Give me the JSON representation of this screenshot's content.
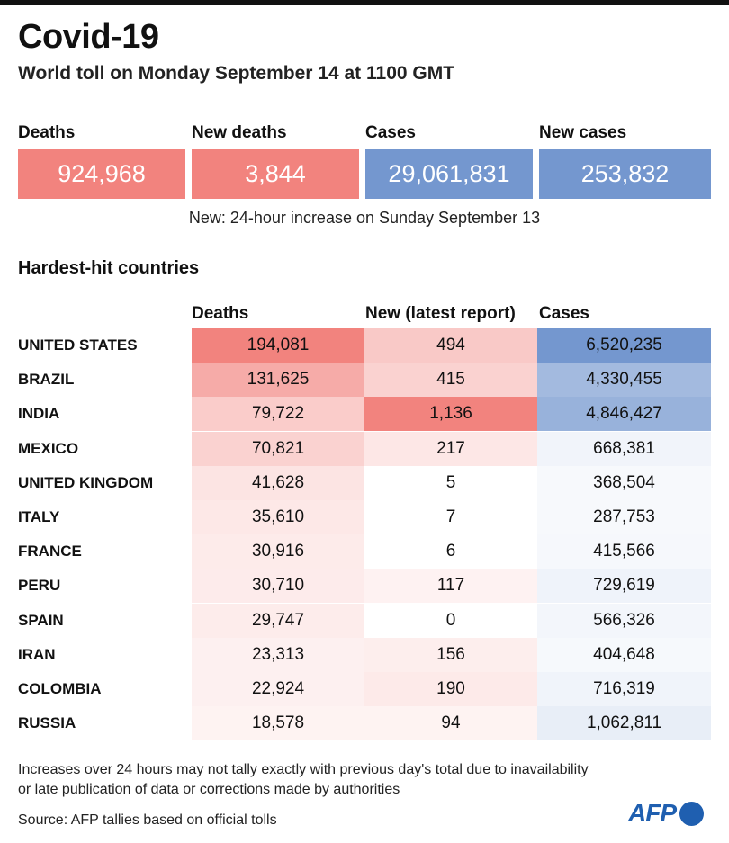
{
  "header": {
    "title": "Covid-19",
    "subtitle": "World toll on Monday September 14 at 1100 GMT"
  },
  "summary": [
    {
      "label": "Deaths",
      "value": "924,968",
      "color": "#f2837e"
    },
    {
      "label": "New deaths",
      "value": "3,844",
      "color": "#f2837e"
    },
    {
      "label": "Cases",
      "value": "29,061,831",
      "color": "#7497cf"
    },
    {
      "label": "New cases",
      "value": "253,832",
      "color": "#7497cf"
    }
  ],
  "note": "New: 24-hour increase on Sunday September 13",
  "section_title": "Hardest-hit countries",
  "chart_data": {
    "type": "table",
    "title": "Hardest-hit countries",
    "columns": [
      "Deaths",
      "New (latest report)",
      "Cases"
    ],
    "rows": [
      {
        "country": "UNITED STATES",
        "deaths": "194,081",
        "new": "494",
        "cases": "6,520,235"
      },
      {
        "country": "BRAZIL",
        "deaths": "131,625",
        "new": "415",
        "cases": "4,330,455"
      },
      {
        "country": "INDIA",
        "deaths": "79,722",
        "new": "1,136",
        "cases": "4,846,427"
      },
      {
        "country": "MEXICO",
        "deaths": "70,821",
        "new": "217",
        "cases": "668,381"
      },
      {
        "country": "UNITED KINGDOM",
        "deaths": "41,628",
        "new": "5",
        "cases": "368,504"
      },
      {
        "country": "ITALY",
        "deaths": "35,610",
        "new": "7",
        "cases": "287,753"
      },
      {
        "country": "FRANCE",
        "deaths": "30,916",
        "new": "6",
        "cases": "415,566"
      },
      {
        "country": "PERU",
        "deaths": "30,710",
        "new": "117",
        "cases": "729,619"
      },
      {
        "country": "SPAIN",
        "deaths": "29,747",
        "new": "0",
        "cases": "566,326"
      },
      {
        "country": "IRAN",
        "deaths": "23,313",
        "new": "156",
        "cases": "404,648"
      },
      {
        "country": "COLOMBIA",
        "deaths": "22,924",
        "new": "190",
        "cases": "716,319"
      },
      {
        "country": "RUSSIA",
        "deaths": "18,578",
        "new": "94",
        "cases": "1,062,811"
      }
    ],
    "colors": {
      "deaths": "#f2837e",
      "new": "#f2837e",
      "cases": "#7497cf"
    }
  },
  "footer": {
    "line1": "Increases over 24 hours may not tally exactly with previous day's total due to inavailability",
    "line2": "or late publication of data or corrections made by authorities",
    "source": "Source: AFP tallies based on official tolls",
    "logo": "AFP"
  }
}
